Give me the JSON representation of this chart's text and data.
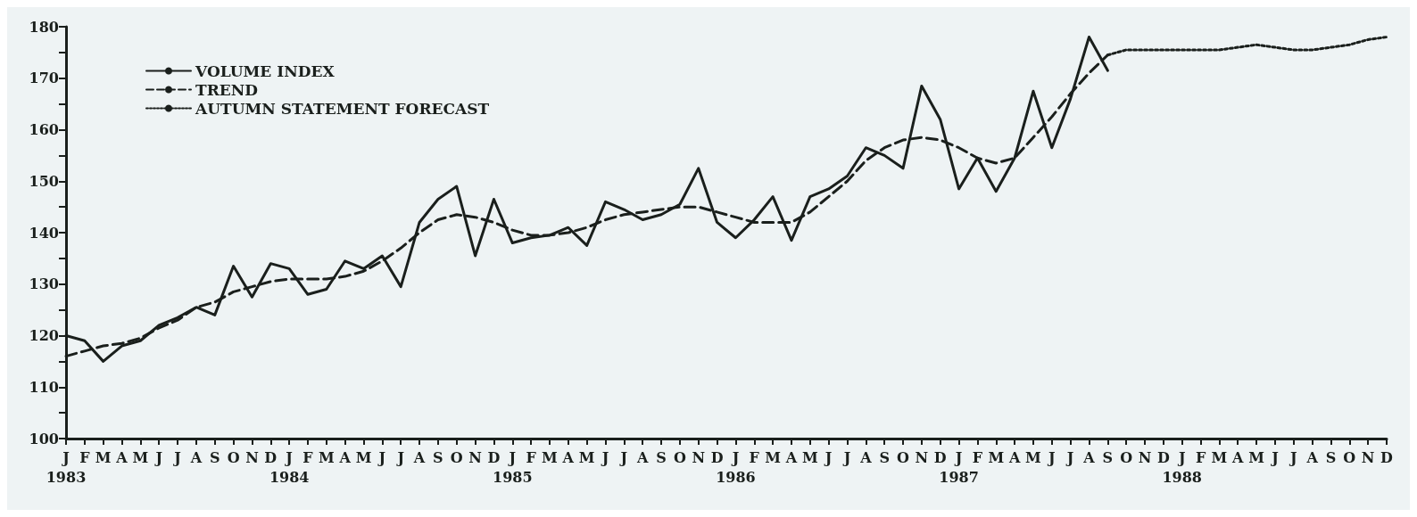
{
  "chart_data": {
    "type": "line",
    "categories": [
      "J\n1983",
      "F",
      "M",
      "A",
      "M",
      "J",
      "J",
      "A",
      "S",
      "O",
      "N",
      "D",
      "J\n1984",
      "F",
      "M",
      "A",
      "M",
      "J",
      "J",
      "A",
      "S",
      "O",
      "N",
      "D",
      "J\n1985",
      "F",
      "M",
      "A",
      "M",
      "J",
      "J",
      "A",
      "S",
      "O",
      "N",
      "D",
      "J\n1986",
      "F",
      "M",
      "A",
      "M",
      "J",
      "J",
      "A",
      "S",
      "O",
      "N",
      "D",
      "J\n1987",
      "F",
      "M",
      "A",
      "M",
      "J",
      "J",
      "A",
      "S",
      "O",
      "N",
      "D",
      "J\n1988",
      "F",
      "M",
      "A",
      "M",
      "J",
      "J",
      "A",
      "S",
      "O",
      "N",
      "D"
    ],
    "series": [
      {
        "name": "VOLUME INDEX",
        "color": "#1a1f1c",
        "line_style": "solid",
        "values": [
          120,
          119,
          115,
          118,
          119,
          122,
          123.5,
          125.5,
          124,
          133.5,
          127.5,
          134,
          133,
          128,
          129,
          134.5,
          133,
          135.5,
          129.5,
          142,
          146.5,
          149,
          135.5,
          146.5,
          138,
          139,
          139.5,
          141,
          137.5,
          146,
          144.5,
          142.5,
          143.5,
          145.5,
          152.5,
          142,
          139,
          142.5,
          147,
          138.5,
          147,
          148.5,
          151,
          156.5,
          155,
          152.5,
          168.5,
          162,
          148.5,
          154.5,
          148,
          154.5,
          167.5,
          156.5,
          166,
          178,
          171.5,
          null,
          null,
          null,
          null,
          null,
          null,
          null,
          null,
          null,
          null,
          null,
          null,
          null,
          null,
          null
        ]
      },
      {
        "name": "TREND",
        "color": "#1a1f1c",
        "line_style": "dashed",
        "values": [
          116,
          117,
          118,
          118.5,
          119.5,
          121.5,
          123,
          125.5,
          126.5,
          128.5,
          129.5,
          130.5,
          131,
          131,
          131,
          131.5,
          132.5,
          134.5,
          137,
          140,
          142.5,
          143.5,
          143,
          142,
          140.5,
          139.5,
          139.5,
          140,
          141,
          142.5,
          143.5,
          144,
          144.5,
          145,
          145,
          144,
          143,
          142,
          142,
          142,
          144,
          147,
          150,
          154,
          156.5,
          158,
          158.5,
          158,
          156.5,
          154.5,
          153.5,
          154.5,
          158.5,
          162.5,
          167,
          171,
          174.5,
          null,
          null,
          null,
          null,
          null,
          null,
          null,
          null,
          null,
          null,
          null,
          null,
          null,
          null,
          null
        ]
      },
      {
        "name": "AUTUMN STATEMENT FORECAST",
        "color": "#1a1f1c",
        "line_style": "dotted",
        "values": [
          null,
          null,
          null,
          null,
          null,
          null,
          null,
          null,
          null,
          null,
          null,
          null,
          null,
          null,
          null,
          null,
          null,
          null,
          null,
          null,
          null,
          null,
          null,
          null,
          null,
          null,
          null,
          null,
          null,
          null,
          null,
          null,
          null,
          null,
          null,
          null,
          null,
          null,
          null,
          null,
          null,
          null,
          null,
          null,
          null,
          null,
          null,
          null,
          null,
          null,
          null,
          null,
          null,
          null,
          null,
          null,
          174.5,
          175.5,
          175.5,
          175.5,
          175.5,
          175.5,
          175.5,
          176,
          176.5,
          176,
          175.5,
          175.5,
          176,
          176.5,
          177.5,
          178
        ]
      }
    ],
    "ylim": [
      100,
      180
    ],
    "yticks": [
      100,
      {
        "value": 105,
        "label": null
      },
      110,
      {
        "value": 115,
        "label": null
      },
      120,
      {
        "value": 125,
        "label": null
      },
      130,
      {
        "value": 135,
        "label": null
      },
      140,
      {
        "value": 145,
        "label": null
      },
      150,
      {
        "value": 155,
        "label": null
      },
      160,
      {
        "value": 165,
        "label": null
      },
      170,
      {
        "value": 175,
        "label": null
      },
      180
    ],
    "grid": false,
    "legend": "top left",
    "marker": "none"
  }
}
